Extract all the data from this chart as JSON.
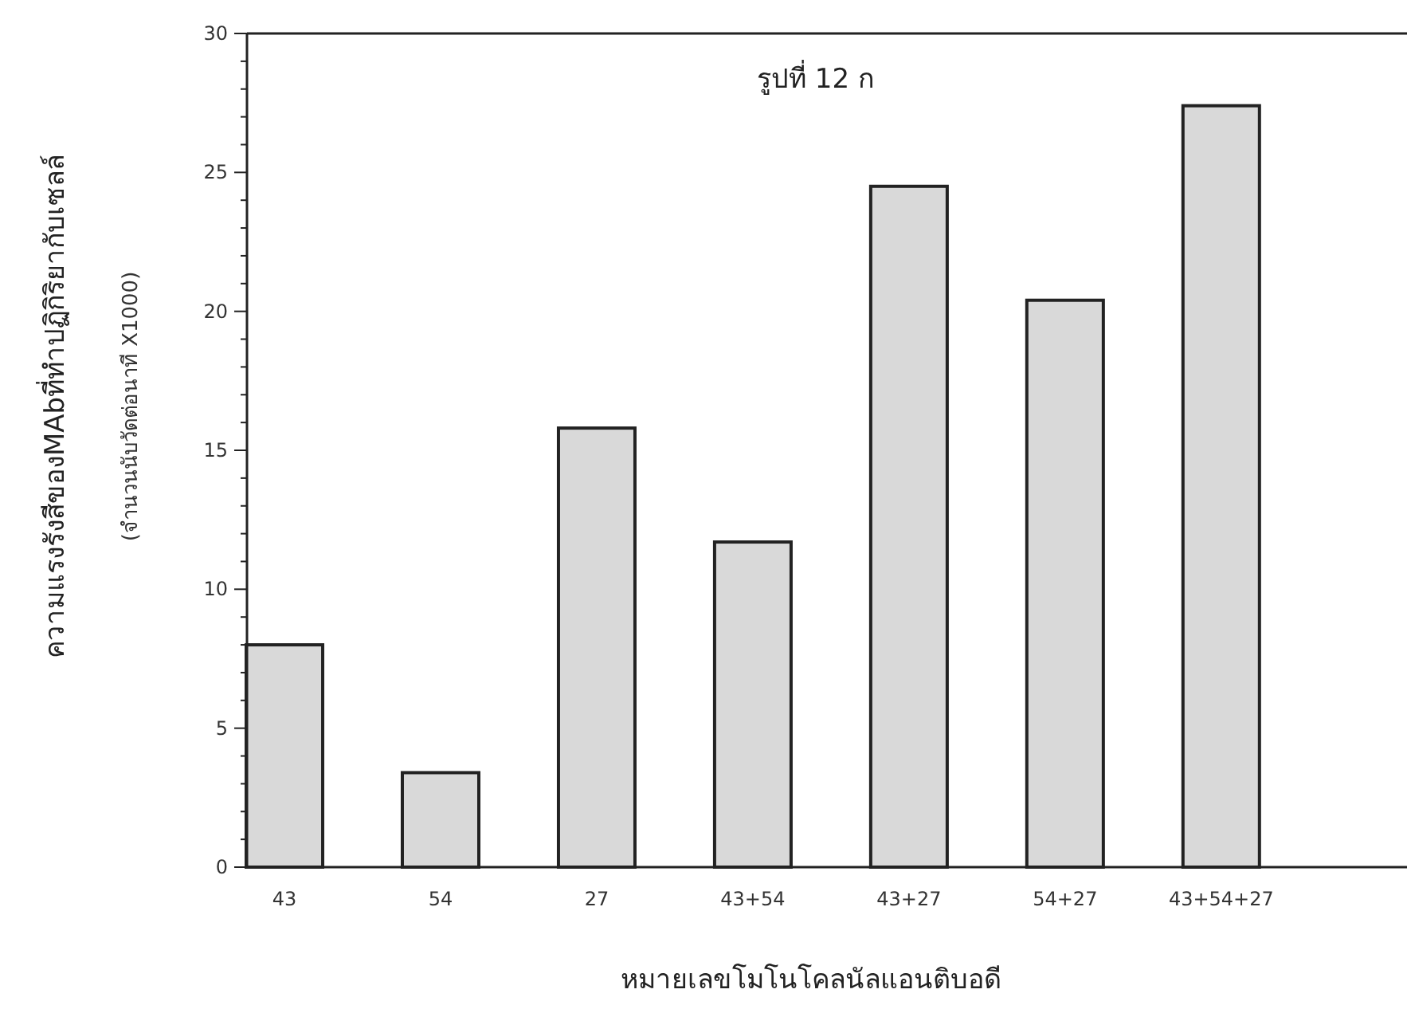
{
  "chart_data": {
    "type": "bar",
    "title": "รูปที่ 12 ก",
    "xlabel": "หมายเลขโมโนโคลนัลแอนติบอดี",
    "ylabel": "ความแรงรังสีของMAbที่ทำปฏิกิริยากับเซลล์",
    "subtitle": "(จำนวนนับวัดต่อนาที X1000)",
    "categories": [
      "43",
      "54",
      "27",
      "43+54",
      "43+27",
      "54+27",
      "43+54+27"
    ],
    "values": [
      8.0,
      3.4,
      15.8,
      11.7,
      24.5,
      20.4,
      27.4
    ],
    "color": "#d9d9d9",
    "ylim": [
      0,
      30
    ],
    "yticks": [
      0,
      {
        "value": 1,
        "label": null
      },
      {
        "value": 2,
        "label": null
      },
      {
        "value": 3,
        "label": null
      },
      {
        "value": 4,
        "label": null
      },
      5,
      {
        "value": 6,
        "label": null
      },
      {
        "value": 7,
        "label": null
      },
      {
        "value": 8,
        "label": null
      },
      {
        "value": 9,
        "label": null
      },
      10,
      {
        "value": 11,
        "label": null
      },
      {
        "value": 12,
        "label": null
      },
      {
        "value": 13,
        "label": null
      },
      {
        "value": 14,
        "label": null
      },
      15,
      {
        "value": 16,
        "label": null
      },
      {
        "value": 17,
        "label": null
      },
      {
        "value": 18,
        "label": null
      },
      {
        "value": 19,
        "label": null
      },
      20,
      {
        "value": 21,
        "label": null
      },
      {
        "value": 22,
        "label": null
      },
      {
        "value": 23,
        "label": null
      },
      {
        "value": 24,
        "label": null
      },
      25,
      {
        "value": 26,
        "label": null
      },
      {
        "value": 27,
        "label": null
      },
      {
        "value": 28,
        "label": null
      },
      {
        "value": 29,
        "label": null
      },
      30
    ],
    "grid": false
  }
}
